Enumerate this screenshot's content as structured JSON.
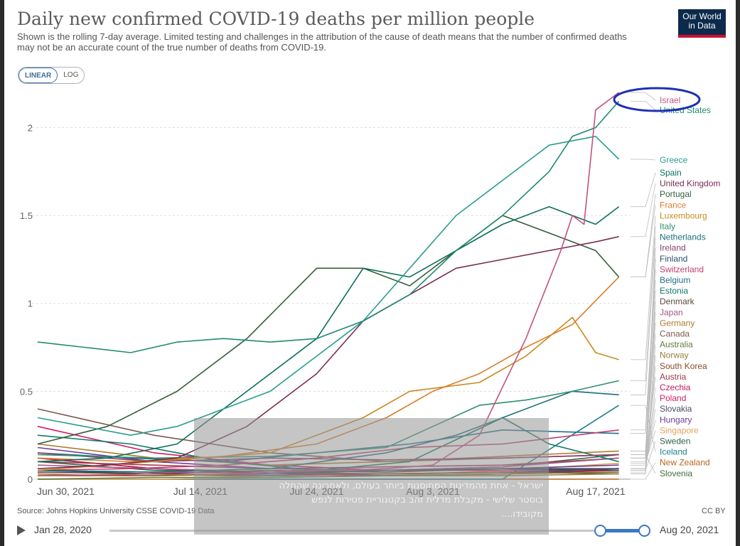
{
  "header": {
    "title": "Daily new confirmed COVID-19 deaths per million people",
    "subtitle": "Shown is the rolling 7-day average. Limited testing and challenges in the attribution of the cause of death means that the number of confirmed deaths may not be an accurate count of the true number of deaths from COVID-19.",
    "logo_line1": "Our World",
    "logo_line2": "in Data"
  },
  "controls": {
    "linear_label": "LINEAR",
    "log_label": "LOG",
    "active": "LINEAR"
  },
  "footer": {
    "source": "Source: Johns Hopkins University CSSE COVID-19 Data",
    "license": "CC BY",
    "timeline_start": "Jan 28, 2020",
    "timeline_end": "Aug 20, 2021"
  },
  "overlay": {
    "line1": "ישראל - אחת מהמדינות המחוסנות ביותר בעולם, ולאחרונה שהחלה",
    "line2": "בוסטר שלישי - מקבלת מדלית זהב בקטגוריית פטירות לנפש",
    "line3": "מקובידו...."
  },
  "colors": {
    "israel": "#c2527d",
    "united_states": "#1f8a70",
    "greece": "#2a9d8f",
    "annotation": "#1f2fb5"
  },
  "chart_data": {
    "type": "line",
    "title": "Daily new confirmed COVID-19 deaths per million people",
    "ylabel": "",
    "ylim": [
      0,
      2.2
    ],
    "yticks": [
      {
        "v": 0,
        "label": "0"
      },
      {
        "v": 0.5,
        "label": "0.5"
      },
      {
        "v": 1,
        "label": "1"
      },
      {
        "v": 1.5,
        "label": "1.5"
      },
      {
        "v": 2,
        "label": "2"
      }
    ],
    "x_day_range": [
      0,
      51
    ],
    "xticks": [
      {
        "day": 0,
        "label": "Jun 30, 2021"
      },
      {
        "day": 14,
        "label": "Jul 14, 2021"
      },
      {
        "day": 24,
        "label": "Jul 24, 2021"
      },
      {
        "day": 34,
        "label": "Aug 3, 2021"
      },
      {
        "day": 48,
        "label": "Aug 17, 2021"
      }
    ],
    "annotation": {
      "target": "Israel",
      "shape": "ellipse"
    },
    "series": [
      {
        "name": "Israel",
        "color": "#c2527d",
        "x": [
          0,
          6,
          12,
          18,
          22,
          26,
          30,
          34,
          38,
          42,
          45,
          46,
          47,
          48,
          49,
          50
        ],
        "values": [
          0.03,
          0.02,
          0.04,
          0.03,
          0.05,
          0.05,
          0.06,
          0.08,
          0.25,
          0.8,
          1.3,
          1.5,
          1.45,
          2.1,
          2.15,
          2.2
        ]
      },
      {
        "name": "United States",
        "color": "#1f8a70",
        "x": [
          0,
          4,
          8,
          12,
          16,
          20,
          24,
          28,
          32,
          36,
          40,
          44,
          46,
          48,
          50
        ],
        "values": [
          0.78,
          0.75,
          0.72,
          0.78,
          0.8,
          0.78,
          0.8,
          0.9,
          1.05,
          1.3,
          1.5,
          1.75,
          1.95,
          2.0,
          2.15
        ]
      },
      {
        "name": "Greece",
        "color": "#2a9d8f",
        "x": [
          0,
          4,
          8,
          12,
          16,
          20,
          24,
          28,
          32,
          36,
          40,
          44,
          48,
          50
        ],
        "values": [
          0.35,
          0.3,
          0.25,
          0.3,
          0.4,
          0.5,
          0.7,
          0.9,
          1.2,
          1.5,
          1.7,
          1.9,
          1.95,
          1.82
        ]
      },
      {
        "name": "Spain",
        "color": "#0d6e5c",
        "x": [
          0,
          6,
          12,
          18,
          24,
          28,
          32,
          36,
          40,
          44,
          48,
          50
        ],
        "values": [
          0.1,
          0.12,
          0.2,
          0.5,
          0.8,
          1.2,
          1.15,
          1.3,
          1.45,
          1.55,
          1.45,
          1.55
        ]
      },
      {
        "name": "United Kingdom",
        "color": "#7a2e52",
        "x": [
          0,
          6,
          12,
          18,
          24,
          28,
          32,
          36,
          40,
          44,
          48,
          50
        ],
        "values": [
          0.06,
          0.08,
          0.12,
          0.3,
          0.6,
          0.9,
          1.05,
          1.2,
          1.25,
          1.3,
          1.35,
          1.38
        ]
      },
      {
        "name": "Portugal",
        "color": "#355e3b",
        "x": [
          0,
          6,
          12,
          18,
          24,
          28,
          32,
          36,
          40,
          44,
          48,
          50
        ],
        "values": [
          0.2,
          0.3,
          0.5,
          0.8,
          1.2,
          1.2,
          1.1,
          1.3,
          1.5,
          1.4,
          1.3,
          1.15
        ]
      },
      {
        "name": "France",
        "color": "#d97e2a",
        "x": [
          0,
          8,
          16,
          24,
          30,
          34,
          38,
          42,
          46,
          50
        ],
        "values": [
          0.12,
          0.1,
          0.13,
          0.2,
          0.35,
          0.5,
          0.6,
          0.75,
          0.88,
          1.15
        ]
      },
      {
        "name": "Luxembourg",
        "color": "#c98b20",
        "x": [
          0,
          10,
          20,
          28,
          32,
          38,
          42,
          46,
          48,
          50
        ],
        "values": [
          0.05,
          0.1,
          0.15,
          0.35,
          0.5,
          0.55,
          0.7,
          0.92,
          0.72,
          0.68
        ]
      },
      {
        "name": "Italy",
        "color": "#2f8f6f",
        "x": [
          0,
          10,
          20,
          30,
          34,
          38,
          42,
          46,
          50
        ],
        "values": [
          0.14,
          0.12,
          0.13,
          0.18,
          0.3,
          0.42,
          0.45,
          0.5,
          0.56
        ]
      },
      {
        "name": "Netherlands",
        "color": "#1c6f7a",
        "x": [
          0,
          10,
          20,
          30,
          36,
          40,
          44,
          46,
          50
        ],
        "values": [
          0.05,
          0.04,
          0.06,
          0.15,
          0.25,
          0.35,
          0.45,
          0.5,
          0.48
        ]
      },
      {
        "name": "Ireland",
        "color": "#8c3d6f",
        "x": [
          0,
          10,
          20,
          30,
          40,
          50
        ],
        "values": [
          0.15,
          0.1,
          0.12,
          0.11,
          0.12,
          0.14
        ]
      },
      {
        "name": "Finland",
        "color": "#2b4f6b",
        "x": [
          0,
          10,
          20,
          30,
          40,
          50
        ],
        "values": [
          0.05,
          0.04,
          0.03,
          0.05,
          0.06,
          0.06
        ]
      },
      {
        "name": "Switzerland",
        "color": "#c13f6a",
        "x": [
          0,
          8,
          16,
          24,
          32,
          40,
          50
        ],
        "values": [
          0.05,
          0.06,
          0.08,
          0.12,
          0.18,
          0.2,
          0.28
        ]
      },
      {
        "name": "Belgium",
        "color": "#1f6f8b",
        "x": [
          0,
          8,
          16,
          24,
          32,
          40,
          50
        ],
        "values": [
          0.15,
          0.12,
          0.1,
          0.15,
          0.2,
          0.28,
          0.26
        ]
      },
      {
        "name": "Estonia",
        "color": "#117a65",
        "x": [
          0,
          8,
          16,
          24,
          32,
          40,
          44,
          50
        ],
        "values": [
          0.25,
          0.2,
          0.1,
          0.05,
          0.1,
          0.35,
          0.2,
          0.1
        ]
      },
      {
        "name": "Denmark",
        "color": "#5a4a3a",
        "x": [
          0,
          10,
          20,
          30,
          40,
          50
        ],
        "values": [
          0.04,
          0.03,
          0.05,
          0.04,
          0.06,
          0.05
        ]
      },
      {
        "name": "Japan",
        "color": "#a05a8a",
        "x": [
          0,
          10,
          20,
          30,
          40,
          50
        ],
        "values": [
          0.08,
          0.06,
          0.04,
          0.05,
          0.07,
          0.12
        ]
      },
      {
        "name": "Germany",
        "color": "#b07a2a",
        "x": [
          0,
          10,
          20,
          30,
          40,
          50
        ],
        "values": [
          0.2,
          0.12,
          0.08,
          0.1,
          0.13,
          0.16
        ]
      },
      {
        "name": "Canada",
        "color": "#7d5a50",
        "x": [
          0,
          10,
          20,
          30,
          40,
          50
        ],
        "values": [
          0.4,
          0.25,
          0.15,
          0.1,
          0.12,
          0.14
        ]
      },
      {
        "name": "Australia",
        "color": "#607d3b",
        "x": [
          0,
          10,
          20,
          30,
          40,
          50
        ],
        "values": [
          0.0,
          0.01,
          0.01,
          0.02,
          0.03,
          0.04
        ]
      },
      {
        "name": "Norway",
        "color": "#9a7d3a",
        "x": [
          0,
          10,
          20,
          30,
          40,
          50
        ],
        "values": [
          0.02,
          0.03,
          0.01,
          0.02,
          0.02,
          0.03
        ]
      },
      {
        "name": "South Korea",
        "color": "#8e4b2e",
        "x": [
          0,
          10,
          20,
          30,
          40,
          50
        ],
        "values": [
          0.02,
          0.02,
          0.03,
          0.03,
          0.04,
          0.03
        ]
      },
      {
        "name": "Austria",
        "color": "#a23b4c",
        "x": [
          0,
          10,
          20,
          30,
          40,
          50
        ],
        "values": [
          0.1,
          0.08,
          0.06,
          0.07,
          0.08,
          0.12
        ]
      },
      {
        "name": "Czechia",
        "color": "#c2185b",
        "x": [
          0,
          10,
          20,
          30,
          40,
          50
        ],
        "values": [
          0.12,
          0.06,
          0.03,
          0.02,
          0.03,
          0.05
        ]
      },
      {
        "name": "Poland",
        "color": "#d81b60",
        "x": [
          0,
          10,
          20,
          30,
          40,
          50
        ],
        "values": [
          0.3,
          0.15,
          0.08,
          0.05,
          0.05,
          0.06
        ]
      },
      {
        "name": "Slovakia",
        "color": "#4a4a6a",
        "x": [
          0,
          10,
          20,
          30,
          40,
          50
        ],
        "values": [
          0.05,
          0.03,
          0.02,
          0.03,
          0.04,
          0.06
        ]
      },
      {
        "name": "Hungary",
        "color": "#6a3d9a",
        "x": [
          0,
          10,
          20,
          30,
          40,
          50
        ],
        "values": [
          0.18,
          0.1,
          0.06,
          0.05,
          0.06,
          0.08
        ]
      },
      {
        "name": "Singapore",
        "color": "#e0a458",
        "x": [
          0,
          10,
          20,
          30,
          40,
          50
        ],
        "values": [
          0.0,
          0.0,
          0.01,
          0.02,
          0.05,
          0.09
        ]
      },
      {
        "name": "Sweden",
        "color": "#2e5e4e",
        "x": [
          0,
          10,
          20,
          30,
          40,
          50
        ],
        "values": [
          0.1,
          0.05,
          0.04,
          0.03,
          0.04,
          0.05
        ]
      },
      {
        "name": "Iceland",
        "color": "#1b7f8f",
        "x": [
          0,
          10,
          20,
          30,
          40,
          50
        ],
        "values": [
          0.0,
          0.0,
          0.0,
          0.0,
          0.0,
          0.42
        ]
      },
      {
        "name": "New Zealand",
        "color": "#b5651d",
        "x": [
          0,
          10,
          20,
          30,
          40,
          50
        ],
        "values": [
          0.0,
          0.0,
          0.0,
          0.0,
          0.0,
          0.0
        ]
      },
      {
        "name": "Slovenia",
        "color": "#3f6e3f",
        "x": [
          0,
          10,
          20,
          30,
          40,
          50
        ],
        "values": [
          0.12,
          0.06,
          0.04,
          0.05,
          0.07,
          0.14
        ]
      }
    ]
  }
}
